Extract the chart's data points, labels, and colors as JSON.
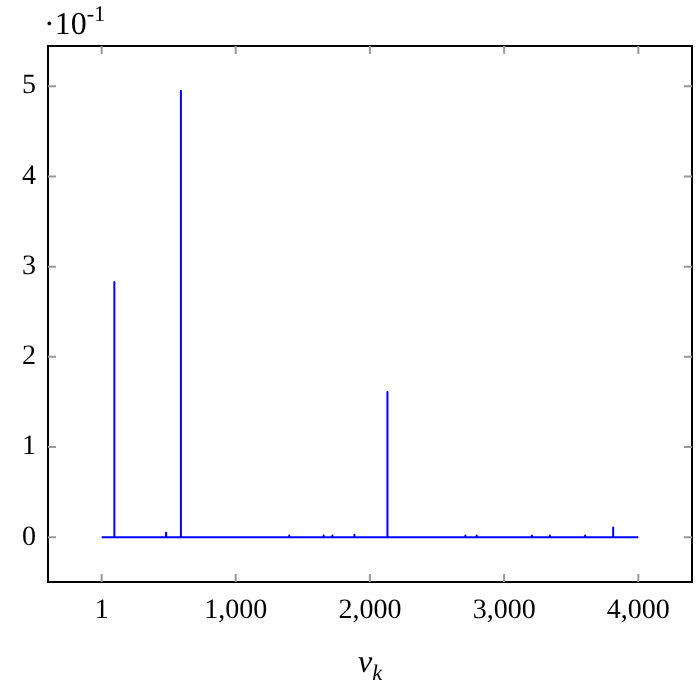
{
  "chart_data": {
    "type": "line",
    "xlabel": "v$_{k}$",
    "annotations": [
      "·10$^{-1}$"
    ],
    "x": [
      1,
      94,
      95,
      96,
      480,
      481,
      482,
      590,
      591,
      592,
      1397,
      1398,
      1399,
      1654,
      1655,
      1656,
      1719,
      1720,
      1721,
      1883,
      1884,
      1885,
      2129,
      2130,
      2131,
      2710,
      2711,
      2712,
      2794,
      2795,
      2796,
      3206,
      3207,
      3208,
      3340,
      3341,
      3342,
      3602,
      3603,
      3604,
      3811,
      3812,
      3813,
      4000
    ],
    "series": [
      {
        "color": "#0000ff",
        "values": [
          0,
          0,
          2.83,
          0,
          0,
          0.05,
          0,
          0,
          4.95,
          0,
          0,
          0.02,
          0,
          0,
          0.02,
          0,
          0,
          0.02,
          0,
          0,
          0.03,
          0,
          0,
          1.61,
          0,
          0,
          0.02,
          0,
          0,
          0.02,
          0,
          0,
          0.02,
          0,
          0,
          0.02,
          0,
          0,
          0.02,
          0,
          0,
          0.11,
          0,
          0
        ]
      }
    ],
    "xlim": [
      -399,
      4400
    ],
    "ylim": [
      -0.495,
      5.445
    ],
    "xticks": [
      1,
      {
        "value": 1000,
        "label": "1,000"
      },
      {
        "value": 2000,
        "label": "2,000"
      },
      {
        "value": 3000,
        "label": "3,000"
      },
      {
        "value": 4000,
        "label": "4,000"
      }
    ],
    "yticks": [
      0,
      1,
      2,
      3,
      4,
      5
    ],
    "grid": false,
    "legend": false,
    "marker": "none",
    "line_style": "solid"
  }
}
